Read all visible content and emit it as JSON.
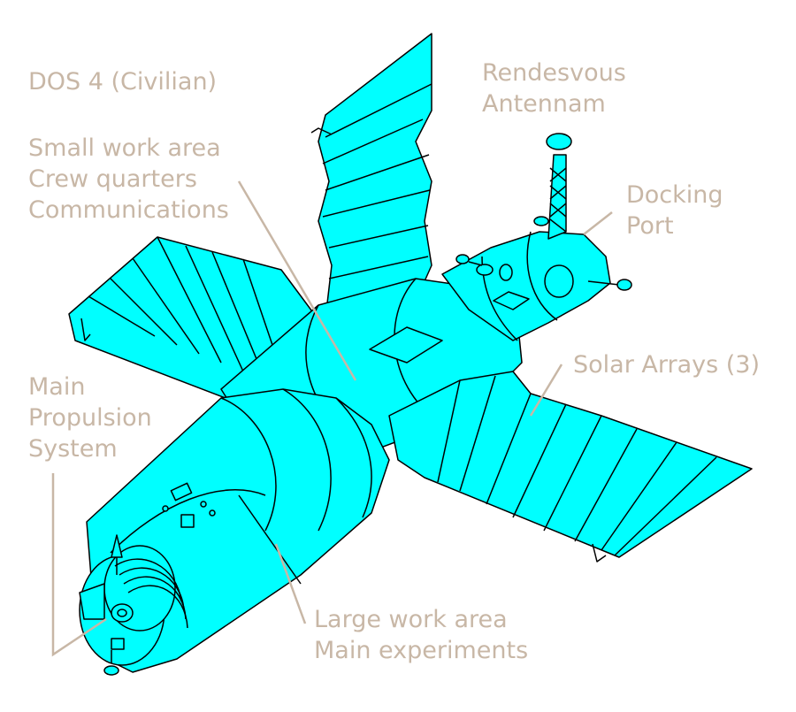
{
  "colors": {
    "body": "#00ffff",
    "stroke": "#000000",
    "label_text": "#c8b7a6",
    "leader_line": "#c8b7a6",
    "background": "#ffffff"
  },
  "labels": {
    "title": "DOS 4 (Civilian)",
    "small_work_area": [
      "Small work area",
      "Crew quarters",
      "Communications"
    ],
    "rendezvous_antenna": [
      "Rendesvous",
      "Antennam"
    ],
    "docking_port": [
      "Docking",
      "Port"
    ],
    "solar_arrays": "Solar Arrays (3)",
    "main_propulsion": [
      "Main",
      "Propulsion",
      "System"
    ],
    "large_work_area": [
      "Large work area",
      "Main experiments"
    ]
  }
}
